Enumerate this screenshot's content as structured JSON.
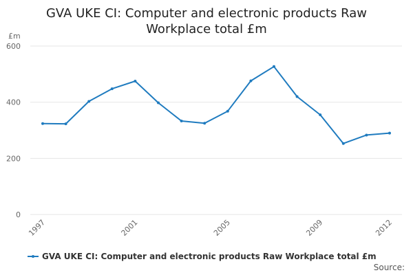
{
  "title_line1": "GVA UKE CI: Computer and electronic products Raw",
  "title_line2": "Workplace total £m",
  "source": "Source:",
  "colors": {
    "series": "#1f7bbf",
    "grid": "#e6e6e6",
    "axis_text": "#666666"
  },
  "chart_data": {
    "type": "line",
    "title": "GVA UKE CI: Computer and electronic products Raw Workplace total £m",
    "ylabel": "£m",
    "ylim": [
      0,
      600
    ],
    "yticks": [
      0,
      200,
      400,
      600
    ],
    "xlim": [
      1997,
      2012
    ],
    "xticks": [
      1997,
      2001,
      2005,
      2009,
      2012
    ],
    "grid": true,
    "legend_position": "bottom-left",
    "series": [
      {
        "name": "GVA UKE CI: Computer and electronic products Raw Workplace total £m",
        "x": [
          1997,
          1998,
          1999,
          2000,
          2001,
          2002,
          2003,
          2004,
          2005,
          2006,
          2007,
          2008,
          2009,
          2010,
          2011,
          2012
        ],
        "y": [
          324,
          323,
          403,
          448,
          475,
          398,
          333,
          325,
          368,
          476,
          527,
          420,
          355,
          253,
          283,
          290
        ]
      }
    ]
  }
}
